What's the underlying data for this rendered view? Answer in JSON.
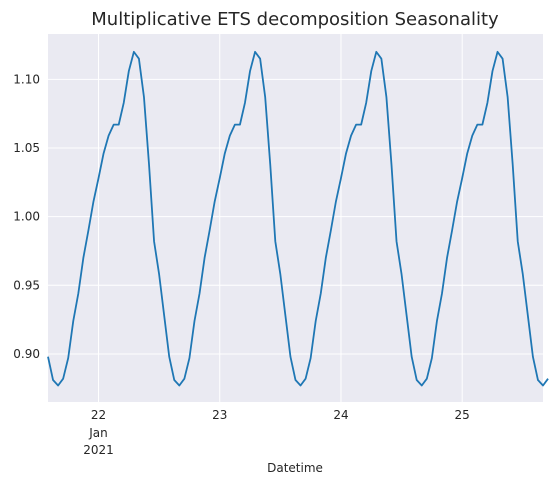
{
  "chart_data": {
    "type": "line",
    "title": "Multiplicative ETS decomposition Seasonality",
    "xlabel": "Datetime",
    "ylabel": "",
    "grid": true,
    "legend": "none",
    "series_color": "#1f77b4",
    "background_color": "#eaeaf2",
    "grid_color": "#ffffff",
    "xlim": [
      "2021-01-21T14:00",
      "2021-01-25T16:00"
    ],
    "ylim": [
      0.865,
      1.133
    ],
    "x_ticks": [
      {
        "x": "2021-01-22T00:00",
        "label": "22",
        "sublabel1": "Jan",
        "sublabel2": "2021"
      },
      {
        "x": "2021-01-23T00:00",
        "label": "23",
        "sublabel1": "",
        "sublabel2": ""
      },
      {
        "x": "2021-01-24T00:00",
        "label": "24",
        "sublabel1": "",
        "sublabel2": ""
      },
      {
        "x": "2021-01-25T00:00",
        "label": "25",
        "sublabel1": "",
        "sublabel2": ""
      }
    ],
    "y_ticks": [
      {
        "value": 0.9,
        "label": "0.90"
      },
      {
        "value": 0.95,
        "label": "0.95"
      },
      {
        "value": 1.0,
        "label": "1.00"
      },
      {
        "value": 1.05,
        "label": "1.05"
      },
      {
        "value": 1.1,
        "label": "1.10"
      }
    ],
    "series": [
      {
        "x_start": "2021-01-21T14:00",
        "step_hours": 1,
        "values": [
          0.898,
          0.881,
          0.877,
          0.882,
          0.897,
          0.924,
          0.944,
          0.97,
          0.99,
          1.011,
          1.028,
          1.046,
          1.059,
          1.067,
          1.067,
          1.083,
          1.106,
          1.12,
          1.115,
          1.087,
          1.038,
          0.982,
          0.958,
          0.928,
          0.898,
          0.881,
          0.877,
          0.882,
          0.897,
          0.924,
          0.944,
          0.97,
          0.99,
          1.011,
          1.028,
          1.046,
          1.059,
          1.067,
          1.067,
          1.083,
          1.106,
          1.12,
          1.115,
          1.087,
          1.038,
          0.982,
          0.958,
          0.928,
          0.898,
          0.881,
          0.877,
          0.882,
          0.897,
          0.924,
          0.944,
          0.97,
          0.99,
          1.011,
          1.028,
          1.046,
          1.059,
          1.067,
          1.067,
          1.083,
          1.106,
          1.12,
          1.115,
          1.087,
          1.038,
          0.982,
          0.958,
          0.928,
          0.898,
          0.881,
          0.877,
          0.882,
          0.897,
          0.924,
          0.944,
          0.97,
          0.99,
          1.011,
          1.028,
          1.046,
          1.059,
          1.067,
          1.067,
          1.083,
          1.106,
          1.12,
          1.115,
          1.087,
          1.038,
          0.982,
          0.958,
          0.928,
          0.898,
          0.881,
          0.877,
          0.882
        ]
      }
    ]
  }
}
